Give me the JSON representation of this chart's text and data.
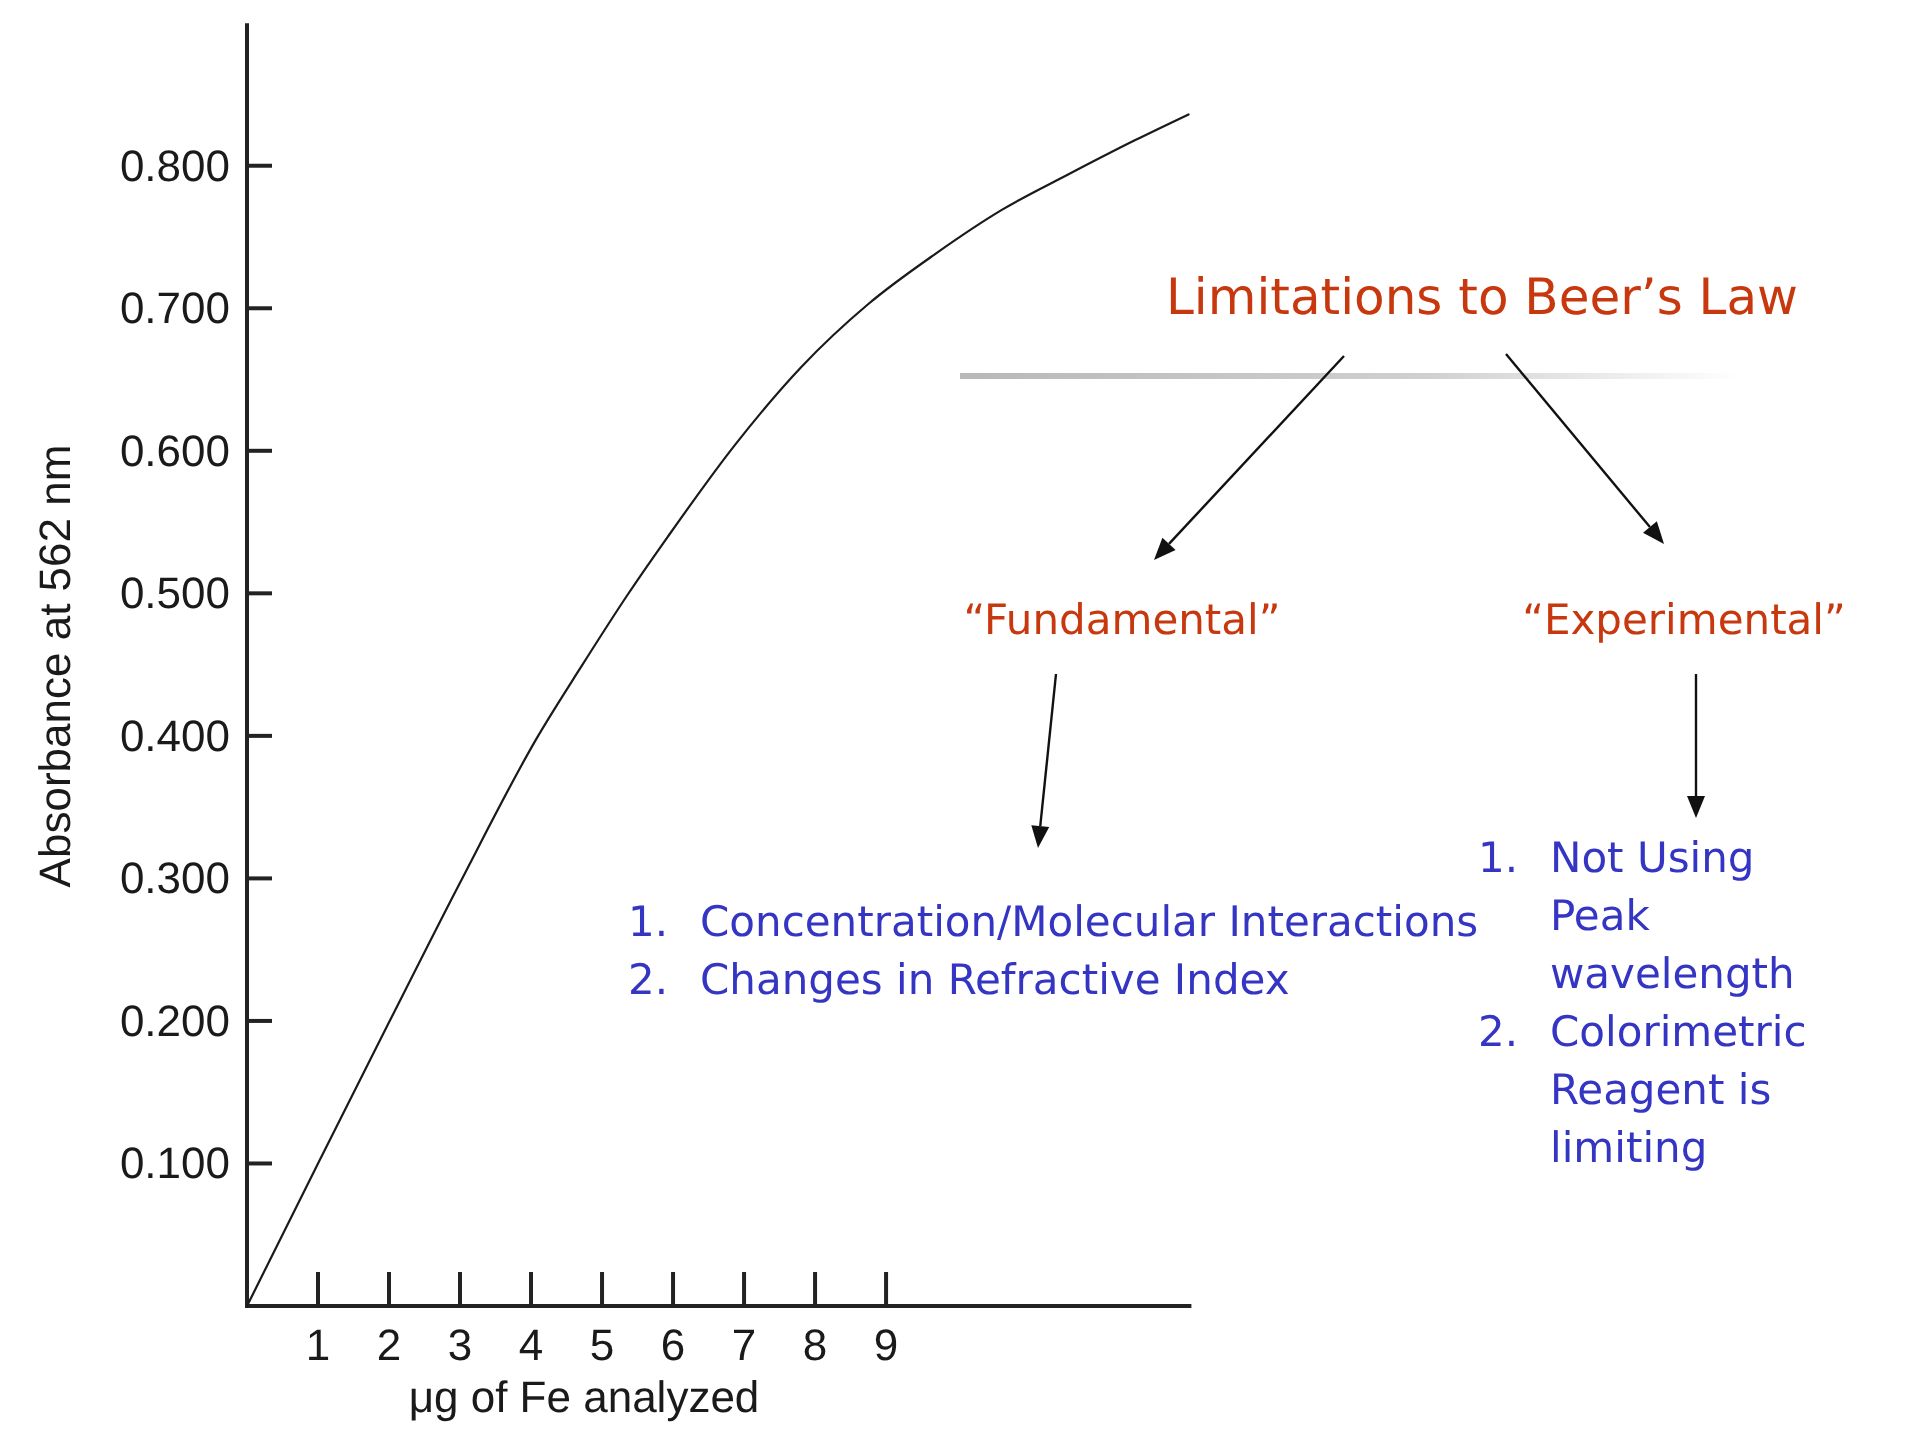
{
  "chart_data": {
    "type": "line",
    "title": "Limitations to Beer’s Law",
    "xlabel": "μg of Fe analyzed",
    "ylabel": "Absorbance at 562 nm",
    "x": [
      0,
      1,
      2,
      3,
      4.1,
      4.7,
      5.36,
      5.93,
      6.87,
      7.81,
      8.75,
      9.69,
      10.63,
      11.57,
      12.51,
      13.26
    ],
    "series": [
      {
        "color": "#1a1a1a",
        "values": [
          0,
          0.1,
          0.199,
          0.297,
          0.4,
          0.448,
          0.499,
          0.54,
          0.604,
          0.659,
          0.703,
          0.738,
          0.769,
          0.794,
          0.818,
          0.836
        ]
      }
    ],
    "xlim": [
      0,
      13.3
    ],
    "ylim": [
      0,
      0.9
    ],
    "xticks": [
      1,
      2,
      3,
      4,
      5,
      6,
      7,
      8,
      9
    ],
    "yticks": [
      {
        "value": 0.1,
        "label": "0.100"
      },
      {
        "value": 0.2,
        "label": "0.200"
      },
      {
        "value": 0.3,
        "label": "0.300"
      },
      {
        "value": 0.4,
        "label": "0.400"
      },
      {
        "value": 0.5,
        "label": "0.500"
      },
      {
        "value": 0.6,
        "label": "0.600"
      },
      {
        "value": 0.7,
        "label": "0.700"
      },
      {
        "value": 0.8,
        "label": "0.800"
      }
    ],
    "annotations": [
      "“Fundamental”",
      "“Experimental”",
      "1. Concentration/Molecular Interactions",
      "2. Changes in Refractive Index",
      "1. Not Using Peak wavelength",
      "2. Colorimetric Reagent is limiting"
    ]
  }
}
